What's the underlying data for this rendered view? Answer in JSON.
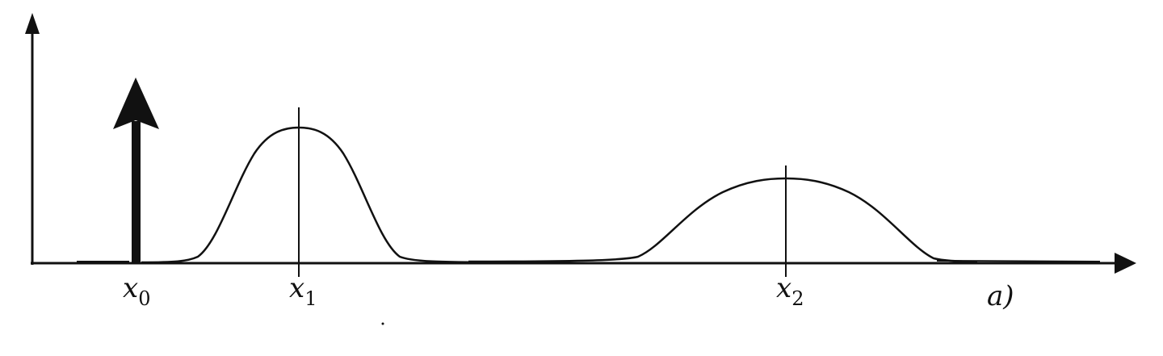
{
  "labels": {
    "x0_base": "x",
    "x0_sub": "0",
    "x1_base": "x",
    "x1_sub": "1",
    "x2_base": "x",
    "x2_sub": "2",
    "panel": "a)"
  },
  "colors": {
    "ink": "#111111",
    "background": "#ffffff"
  }
}
